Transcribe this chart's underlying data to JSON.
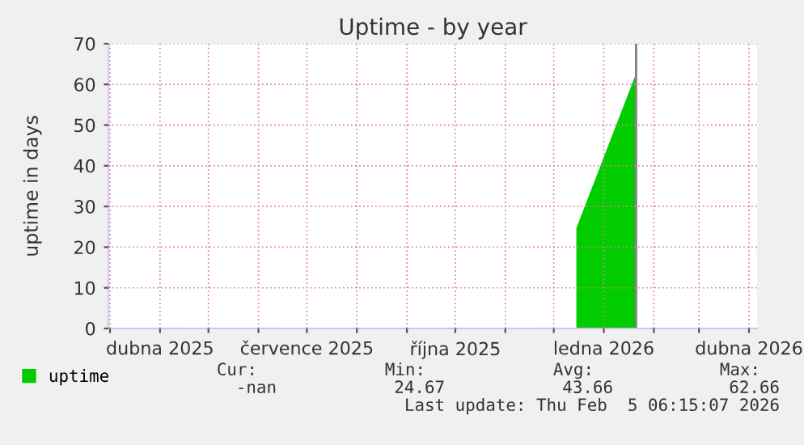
{
  "chart_data": {
    "type": "area",
    "title": "Uptime - by year",
    "ylabel": "uptime in days",
    "x": [
      "2025-12-15",
      "2026-01-21"
    ],
    "series": [
      {
        "name": "uptime",
        "color": "#00cc00",
        "values": [
          24.67,
          62.66
        ]
      }
    ],
    "xlim": [
      "2025-02-28",
      "2026-04-06"
    ],
    "xticks": [
      {
        "value": "2025-03-01",
        "label": null
      },
      {
        "value": "2025-04-01",
        "label": "dubna 2025"
      },
      {
        "value": "2025-05-01",
        "label": null
      },
      {
        "value": "2025-06-01",
        "label": null
      },
      {
        "value": "2025-07-01",
        "label": "července 2025"
      },
      {
        "value": "2025-08-01",
        "label": null
      },
      {
        "value": "2025-09-01",
        "label": null
      },
      {
        "value": "2025-10-01",
        "label": "října 2025"
      },
      {
        "value": "2025-11-01",
        "label": null
      },
      {
        "value": "2025-12-01",
        "label": null
      },
      {
        "value": "2026-01-01",
        "label": "ledna 2026"
      },
      {
        "value": "2026-02-01",
        "label": null
      },
      {
        "value": "2026-03-01",
        "label": null
      },
      {
        "value": "2026-04-01",
        "label": "dubna 2026"
      }
    ],
    "ylim": [
      0,
      70
    ],
    "yticks": [
      0,
      10,
      20,
      30,
      40,
      50,
      60,
      70
    ],
    "ref_lines": [
      {
        "axis": "x",
        "value": "2026-01-21",
        "color": "#808080"
      }
    ],
    "grid": true,
    "legend": "bottom",
    "annotations": [
      "Cur:",
      "Min:",
      "Avg:",
      "Max:",
      "-nan",
      "24.67",
      "43.66",
      "62.66",
      "Last update: Thu Feb  5 06:15:07 2026"
    ]
  }
}
